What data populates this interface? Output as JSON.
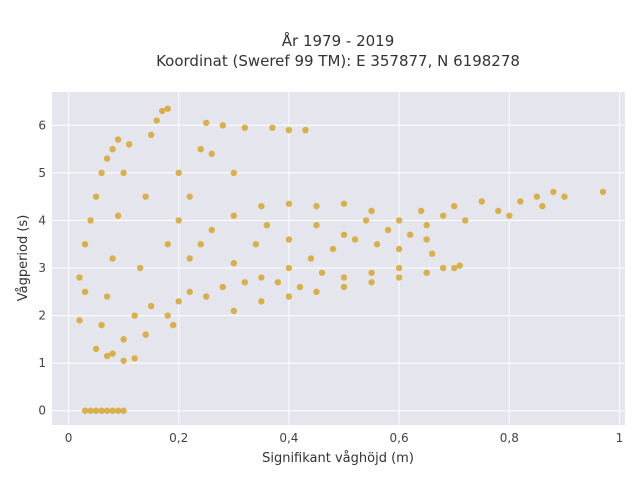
{
  "chart_data": {
    "type": "scatter",
    "title_line1": "År 1979 - 2019",
    "title_line2": "Koordinat (Sweref 99 TM): E 357877, N 6198278",
    "xlabel": "Signifikant våghöjd (m)",
    "ylabel": "Vågperiod (s)",
    "xlim": [
      -0.03,
      1.01
    ],
    "ylim": [
      -0.3,
      6.7
    ],
    "x_ticks": [
      0,
      0.2,
      0.4,
      0.6,
      0.8,
      1
    ],
    "x_tick_labels": [
      "0",
      "0,2",
      "0,4",
      "0,6",
      "0,8",
      "1"
    ],
    "y_ticks": [
      0,
      1,
      2,
      3,
      4,
      5,
      6
    ],
    "y_tick_labels": [
      "0",
      "1",
      "2",
      "3",
      "4",
      "5",
      "6"
    ],
    "grid": true,
    "legend": "none",
    "marker_color": "#d4a11e",
    "plot_background": "#e5e5ee",
    "series": [
      {
        "values": [
          [
            0.05,
            1.3
          ],
          [
            0.06,
            1.8
          ],
          [
            0.07,
            2.4
          ],
          [
            0.08,
            3.2
          ],
          [
            0.09,
            4.1
          ],
          [
            0.1,
            5.0
          ],
          [
            0.11,
            5.6
          ],
          [
            0.08,
            1.2
          ],
          [
            0.1,
            1.5
          ],
          [
            0.12,
            2.0
          ],
          [
            0.13,
            3.0
          ],
          [
            0.14,
            4.5
          ],
          [
            0.15,
            5.8
          ],
          [
            0.16,
            6.1
          ],
          [
            0.17,
            6.3
          ],
          [
            0.18,
            6.35
          ],
          [
            0.15,
            2.2
          ],
          [
            0.18,
            2.0
          ],
          [
            0.2,
            2.3
          ],
          [
            0.22,
            2.5
          ],
          [
            0.24,
            3.5
          ],
          [
            0.25,
            2.4
          ],
          [
            0.26,
            3.8
          ],
          [
            0.28,
            2.6
          ],
          [
            0.3,
            3.1
          ],
          [
            0.3,
            4.1
          ],
          [
            0.32,
            2.7
          ],
          [
            0.34,
            3.5
          ],
          [
            0.35,
            2.8
          ],
          [
            0.36,
            3.9
          ],
          [
            0.38,
            2.7
          ],
          [
            0.4,
            3.0
          ],
          [
            0.4,
            3.6
          ],
          [
            0.42,
            2.6
          ],
          [
            0.44,
            3.2
          ],
          [
            0.45,
            3.9
          ],
          [
            0.46,
            2.9
          ],
          [
            0.48,
            3.4
          ],
          [
            0.5,
            3.7
          ],
          [
            0.5,
            2.8
          ],
          [
            0.52,
            3.6
          ],
          [
            0.54,
            4.0
          ],
          [
            0.55,
            2.9
          ],
          [
            0.56,
            3.5
          ],
          [
            0.58,
            3.8
          ],
          [
            0.6,
            4.0
          ],
          [
            0.6,
            3.0
          ],
          [
            0.62,
            3.7
          ],
          [
            0.64,
            4.2
          ],
          [
            0.65,
            3.9
          ],
          [
            0.66,
            3.3
          ],
          [
            0.68,
            4.1
          ],
          [
            0.7,
            4.3
          ],
          [
            0.7,
            3.0
          ],
          [
            0.72,
            4.0
          ],
          [
            0.75,
            4.4
          ],
          [
            0.78,
            4.2
          ],
          [
            0.8,
            4.1
          ],
          [
            0.82,
            4.4
          ],
          [
            0.85,
            4.5
          ],
          [
            0.86,
            4.3
          ],
          [
            0.88,
            4.6
          ],
          [
            0.9,
            4.5
          ],
          [
            0.97,
            4.6
          ],
          [
            0.03,
            0.0
          ],
          [
            0.04,
            0.0
          ],
          [
            0.05,
            0.0
          ],
          [
            0.06,
            0.0
          ],
          [
            0.07,
            0.0
          ],
          [
            0.08,
            0.0
          ],
          [
            0.09,
            0.0
          ],
          [
            0.1,
            0.0
          ],
          [
            0.37,
            5.95
          ],
          [
            0.4,
            5.9
          ],
          [
            0.43,
            5.9
          ],
          [
            0.32,
            5.95
          ],
          [
            0.28,
            6.0
          ],
          [
            0.24,
            5.5
          ],
          [
            0.26,
            5.4
          ],
          [
            0.3,
            5.0
          ],
          [
            0.25,
            6.05
          ],
          [
            0.02,
            1.9
          ],
          [
            0.03,
            2.5
          ],
          [
            0.02,
            2.8
          ],
          [
            0.03,
            3.5
          ],
          [
            0.04,
            4.0
          ],
          [
            0.05,
            4.5
          ],
          [
            0.06,
            5.0
          ],
          [
            0.07,
            5.3
          ],
          [
            0.08,
            5.5
          ],
          [
            0.09,
            5.7
          ],
          [
            0.35,
            4.3
          ],
          [
            0.4,
            4.35
          ],
          [
            0.45,
            4.3
          ],
          [
            0.5,
            4.35
          ],
          [
            0.55,
            4.2
          ],
          [
            0.6,
            3.4
          ],
          [
            0.65,
            3.6
          ],
          [
            0.2,
            4.0
          ],
          [
            0.22,
            3.2
          ],
          [
            0.18,
            3.5
          ],
          [
            0.2,
            5.0
          ],
          [
            0.22,
            4.5
          ],
          [
            0.19,
            1.8
          ],
          [
            0.14,
            1.6
          ],
          [
            0.12,
            1.1
          ],
          [
            0.1,
            1.05
          ],
          [
            0.07,
            1.15
          ],
          [
            0.3,
            2.1
          ],
          [
            0.35,
            2.3
          ],
          [
            0.4,
            2.4
          ],
          [
            0.45,
            2.5
          ],
          [
            0.5,
            2.6
          ],
          [
            0.55,
            2.7
          ],
          [
            0.6,
            2.8
          ],
          [
            0.65,
            2.9
          ],
          [
            0.68,
            3.0
          ],
          [
            0.71,
            3.05
          ]
        ]
      }
    ]
  }
}
